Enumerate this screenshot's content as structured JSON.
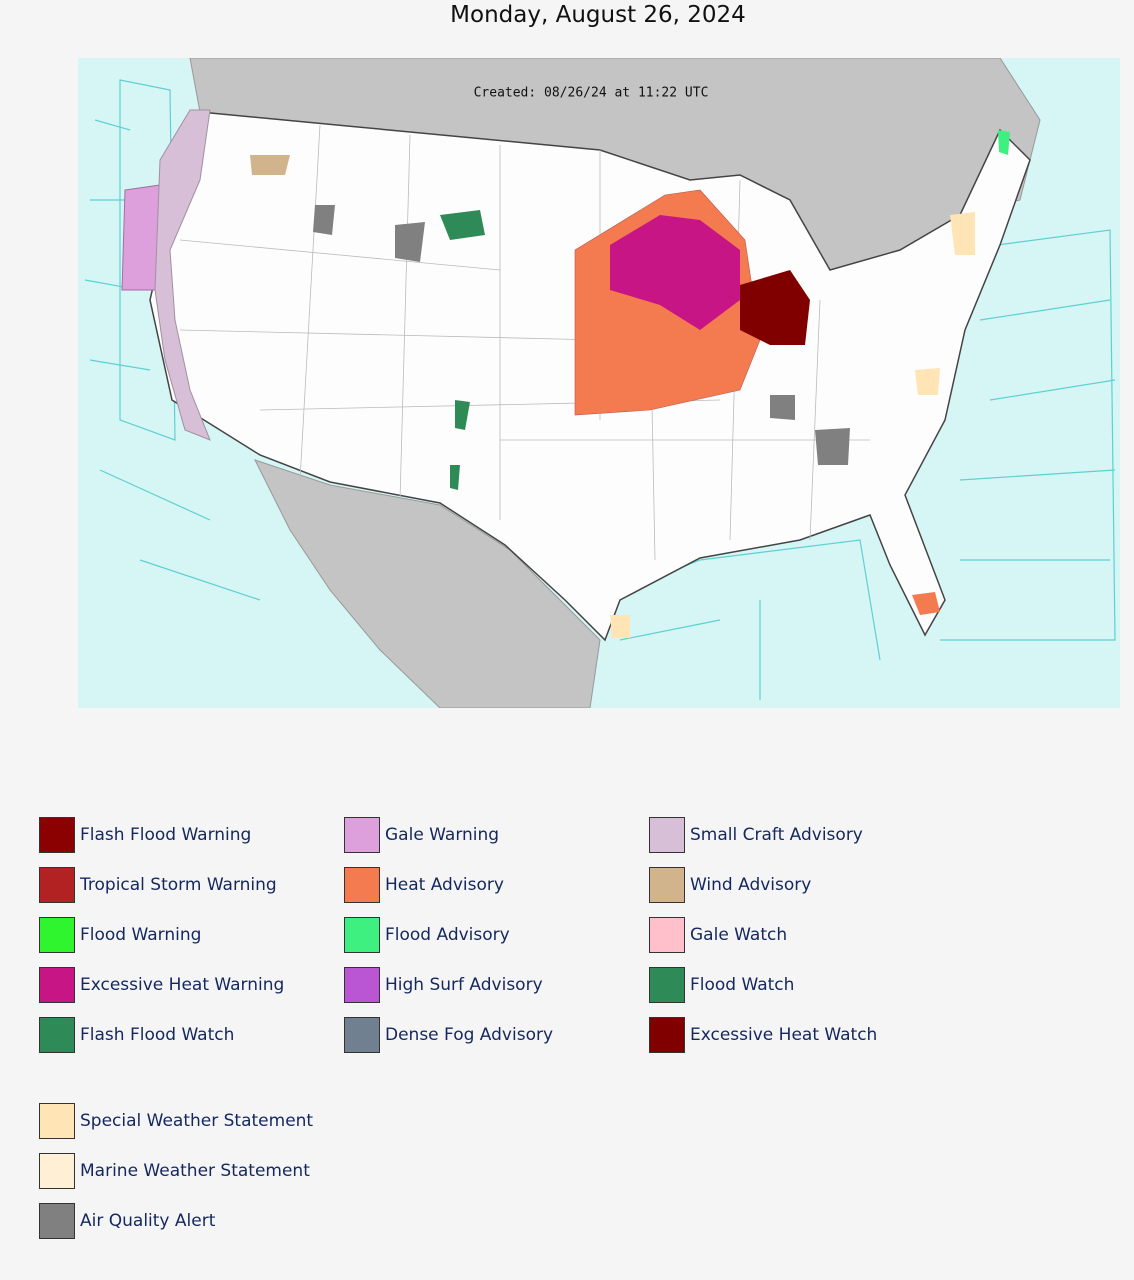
{
  "title": "Monday, August 26, 2024",
  "map": {
    "created": "Created: 08/26/24 at 11:22 UTC"
  },
  "legend": {
    "columns": [
      [
        {
          "label": "Flash Flood Warning",
          "color": "#8b0000"
        },
        {
          "label": "Tropical Storm Warning",
          "color": "#b22222"
        },
        {
          "label": "Flood Warning",
          "color": "#2ef52e"
        },
        {
          "label": "Excessive Heat Warning",
          "color": "#c71585"
        },
        {
          "label": "Flash Flood Watch",
          "color": "#2e8b57"
        }
      ],
      [
        {
          "label": "Gale Warning",
          "color": "#dda0dd"
        },
        {
          "label": "Heat Advisory",
          "color": "#f47b4f"
        },
        {
          "label": "Flood Advisory",
          "color": "#3ef07f"
        },
        {
          "label": "High Surf Advisory",
          "color": "#ba55d3"
        },
        {
          "label": "Dense Fog Advisory",
          "color": "#708090"
        }
      ],
      [
        {
          "label": "Small Craft Advisory",
          "color": "#d8bfd8"
        },
        {
          "label": "Wind Advisory",
          "color": "#d2b48c"
        },
        {
          "label": "Gale Watch",
          "color": "#ffc0cb"
        },
        {
          "label": "Flood Watch",
          "color": "#2e8b57"
        },
        {
          "label": "Excessive Heat Watch",
          "color": "#800000"
        }
      ]
    ],
    "statements": [
      {
        "label": "Special Weather Statement",
        "color": "#ffe4b5"
      },
      {
        "label": "Marine Weather Statement",
        "color": "#ffefd5"
      },
      {
        "label": "Air Quality Alert",
        "color": "#808080"
      }
    ]
  }
}
